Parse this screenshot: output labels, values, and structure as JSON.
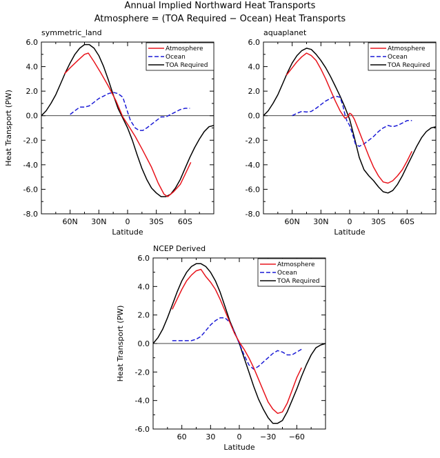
{
  "header": {
    "title_line1": "Annual Implied Northward Heat Transports",
    "title_line2": "Atmosphere = (TOA Required − Ocean) Heat Transports"
  },
  "chart_data": [
    {
      "type": "line",
      "subtitle": "symmetric_land",
      "xlabel": "Latitude",
      "ylabel": "Heat Transport (PW)",
      "xlim": [
        90,
        -90
      ],
      "ylim": [
        -8,
        6
      ],
      "xticks": [
        60,
        30,
        0,
        -30,
        -60
      ],
      "xtick_labels": [
        "60N",
        "30N",
        "0",
        "30S",
        "60S"
      ],
      "yticks": [
        -8,
        -6,
        -4,
        -2,
        0,
        2,
        4,
        6
      ],
      "ytick_labels": [
        "-8.0",
        "-6.0",
        "-4.0",
        "-2.0",
        "0.0",
        "2.0",
        "4.0",
        "6.0"
      ],
      "zero_line": true,
      "legend": {
        "placement": "top-right",
        "entries": [
          "Atmosphere",
          "Ocean",
          "TOA Required"
        ]
      },
      "series": [
        {
          "name": "Atmosphere",
          "color": "#e8131b",
          "dash": "solid",
          "x": [
            66,
            60,
            52,
            45,
            41,
            35,
            28,
            20,
            12,
            5,
            0,
            -8,
            -15,
            -25,
            -32,
            -38,
            -42,
            -48,
            -55,
            -60,
            -66
          ],
          "y": [
            3.4,
            3.9,
            4.5,
            5.0,
            5.1,
            4.4,
            3.5,
            2.4,
            1.2,
            -0.1,
            -0.7,
            -1.7,
            -2.7,
            -4.2,
            -5.5,
            -6.4,
            -6.6,
            -6.2,
            -5.6,
            -4.8,
            -3.8
          ]
        },
        {
          "name": "Ocean",
          "color": "#1a1ad6",
          "dash": "dashed",
          "x": [
            60,
            55,
            50,
            45,
            40,
            35,
            30,
            25,
            20,
            15,
            10,
            5,
            2,
            0,
            -3,
            -8,
            -12,
            -16,
            -20,
            -25,
            -30,
            -35,
            -40,
            -45,
            -50,
            -55,
            -60,
            -65
          ],
          "y": [
            0.1,
            0.4,
            0.7,
            0.7,
            0.8,
            1.1,
            1.4,
            1.6,
            1.8,
            1.9,
            1.8,
            1.5,
            0.8,
            0.3,
            -0.4,
            -1.0,
            -1.2,
            -1.2,
            -1.0,
            -0.7,
            -0.4,
            -0.1,
            -0.1,
            0.1,
            0.3,
            0.5,
            0.6,
            0.6
          ]
        },
        {
          "name": "TOA Required",
          "color": "#000000",
          "dash": "solid",
          "x": [
            90,
            85,
            80,
            75,
            70,
            65,
            60,
            55,
            50,
            45,
            40,
            35,
            30,
            25,
            20,
            15,
            10,
            5,
            0,
            -5,
            -10,
            -15,
            -20,
            -25,
            -30,
            -35,
            -40,
            -45,
            -50,
            -55,
            -60,
            -65,
            -70,
            -75,
            -80,
            -85,
            -90
          ],
          "y": [
            0.0,
            0.4,
            1.0,
            1.7,
            2.6,
            3.5,
            4.3,
            5.0,
            5.5,
            5.8,
            5.8,
            5.5,
            4.9,
            4.0,
            2.9,
            1.7,
            0.6,
            -0.2,
            -1.0,
            -2.0,
            -3.2,
            -4.3,
            -5.2,
            -5.9,
            -6.3,
            -6.6,
            -6.6,
            -6.4,
            -5.9,
            -5.2,
            -4.3,
            -3.4,
            -2.6,
            -1.9,
            -1.3,
            -0.9,
            -0.8
          ]
        }
      ]
    },
    {
      "type": "line",
      "subtitle": "aquaplanet",
      "xlabel": "Latitude",
      "ylabel": "",
      "xlim": [
        90,
        -90
      ],
      "ylim": [
        -8,
        6
      ],
      "xticks": [
        60,
        30,
        0,
        -30,
        -60
      ],
      "xtick_labels": [
        "60N",
        "30N",
        "0",
        "30S",
        "60S"
      ],
      "yticks": [
        -8,
        -6,
        -4,
        -2,
        0,
        2,
        4,
        6
      ],
      "ytick_labels": [
        "-8.0",
        "-6.0",
        "-4.0",
        "-2.0",
        "0.0",
        "2.0",
        "4.0",
        "6.0"
      ],
      "zero_line": true,
      "legend": {
        "placement": "top-right",
        "entries": [
          "Atmosphere",
          "Ocean",
          "TOA Required"
        ]
      },
      "series": [
        {
          "name": "Atmosphere",
          "color": "#e8131b",
          "dash": "solid",
          "x": [
            66,
            60,
            55,
            50,
            45,
            40,
            35,
            30,
            25,
            20,
            15,
            10,
            5,
            2,
            0,
            -2,
            -5,
            -10,
            -15,
            -20,
            -25,
            -30,
            -35,
            -40,
            -45,
            -50,
            -55,
            -60,
            -65
          ],
          "y": [
            3.3,
            3.9,
            4.4,
            4.8,
            5.1,
            4.9,
            4.5,
            3.8,
            3.0,
            2.1,
            1.2,
            0.4,
            -0.2,
            -0.1,
            0.2,
            0.1,
            -0.3,
            -1.3,
            -2.3,
            -3.3,
            -4.2,
            -4.9,
            -5.4,
            -5.5,
            -5.3,
            -4.9,
            -4.4,
            -3.7,
            -2.9
          ]
        },
        {
          "name": "Ocean",
          "color": "#1a1ad6",
          "dash": "dashed",
          "x": [
            60,
            55,
            50,
            45,
            40,
            35,
            30,
            25,
            20,
            15,
            10,
            7,
            5,
            3,
            0,
            -3,
            -6,
            -10,
            -15,
            -20,
            -25,
            -30,
            -35,
            -40,
            -45,
            -50,
            -55,
            -60,
            -65
          ],
          "y": [
            0.0,
            0.2,
            0.35,
            0.3,
            0.35,
            0.6,
            0.9,
            1.2,
            1.4,
            1.6,
            1.5,
            0.8,
            0.1,
            -0.4,
            -0.8,
            -1.5,
            -2.3,
            -2.5,
            -2.3,
            -2.0,
            -1.7,
            -1.3,
            -1.0,
            -0.8,
            -0.9,
            -0.8,
            -0.6,
            -0.4,
            -0.4
          ]
        },
        {
          "name": "TOA Required",
          "color": "#000000",
          "dash": "solid",
          "x": [
            90,
            85,
            80,
            75,
            70,
            65,
            60,
            55,
            50,
            45,
            40,
            35,
            30,
            25,
            20,
            15,
            10,
            5,
            0,
            -5,
            -10,
            -15,
            -20,
            -25,
            -30,
            -35,
            -40,
            -45,
            -50,
            -55,
            -60,
            -65,
            -70,
            -75,
            -80,
            -85,
            -90
          ],
          "y": [
            0.0,
            0.4,
            1.0,
            1.7,
            2.6,
            3.5,
            4.3,
            4.9,
            5.3,
            5.5,
            5.4,
            5.0,
            4.5,
            3.9,
            3.2,
            2.4,
            1.6,
            0.7,
            -0.3,
            -1.8,
            -3.4,
            -4.4,
            -4.9,
            -5.3,
            -5.8,
            -6.2,
            -6.3,
            -6.1,
            -5.6,
            -4.9,
            -4.1,
            -3.3,
            -2.5,
            -1.8,
            -1.3,
            -1.0,
            -0.9
          ]
        }
      ]
    },
    {
      "type": "line",
      "subtitle": "NCEP Derived",
      "xlabel": "Latitude",
      "ylabel": "Heat Transport (PW)",
      "xlim": [
        90,
        -90
      ],
      "ylim": [
        -6,
        6
      ],
      "xticks": [
        60,
        30,
        0,
        -30,
        -60
      ],
      "xtick_labels": [
        "60",
        "30",
        "0",
        "−30",
        "−60"
      ],
      "yticks": [
        -6,
        -4,
        -2,
        0,
        2,
        4,
        6
      ],
      "ytick_labels": [
        "-6.0",
        "-4.0",
        "-2.0",
        "0.0",
        "2.0",
        "4.0",
        "6.0"
      ],
      "zero_line": true,
      "legend": {
        "placement": "top-right",
        "entries": [
          "Atmosphere",
          "Ocean",
          "TOA Required"
        ]
      },
      "series": [
        {
          "name": "Atmosphere",
          "color": "#e8131b",
          "dash": "solid",
          "x": [
            70,
            65,
            60,
            55,
            50,
            45,
            40,
            35,
            30,
            25,
            20,
            15,
            10,
            5,
            0,
            -5,
            -10,
            -15,
            -20,
            -25,
            -30,
            -35,
            -40,
            -45,
            -50,
            -55,
            -60,
            -65
          ],
          "y": [
            2.4,
            3.1,
            3.8,
            4.4,
            4.8,
            5.1,
            5.2,
            4.7,
            4.3,
            3.8,
            3.1,
            2.3,
            1.5,
            0.7,
            0.1,
            -0.4,
            -1.0,
            -1.7,
            -2.5,
            -3.3,
            -4.1,
            -4.6,
            -4.9,
            -4.8,
            -4.2,
            -3.3,
            -2.4,
            -1.7
          ]
        },
        {
          "name": "Ocean",
          "color": "#1a1ad6",
          "dash": "dashed",
          "x": [
            70,
            65,
            60,
            55,
            50,
            45,
            40,
            35,
            30,
            25,
            20,
            15,
            10,
            5,
            0,
            -5,
            -10,
            -15,
            -20,
            -25,
            -30,
            -35,
            -40,
            -45,
            -50,
            -55,
            -60,
            -65
          ],
          "y": [
            0.2,
            0.2,
            0.2,
            0.2,
            0.2,
            0.3,
            0.5,
            0.9,
            1.3,
            1.6,
            1.8,
            1.8,
            1.5,
            0.8,
            0.0,
            -0.8,
            -1.5,
            -1.8,
            -1.6,
            -1.3,
            -1.0,
            -0.7,
            -0.5,
            -0.6,
            -0.8,
            -0.8,
            -0.6,
            -0.4
          ]
        },
        {
          "name": "TOA Required",
          "color": "#000000",
          "dash": "solid",
          "x": [
            90,
            85,
            80,
            75,
            70,
            65,
            60,
            55,
            50,
            45,
            40,
            35,
            30,
            25,
            20,
            15,
            10,
            5,
            0,
            -5,
            -10,
            -15,
            -20,
            -25,
            -30,
            -35,
            -40,
            -45,
            -50,
            -55,
            -60,
            -65,
            -70,
            -75,
            -80,
            -85,
            -90
          ],
          "y": [
            0.0,
            0.4,
            1.0,
            1.8,
            2.7,
            3.6,
            4.4,
            5.0,
            5.4,
            5.6,
            5.6,
            5.4,
            5.0,
            4.4,
            3.6,
            2.6,
            1.6,
            0.8,
            0.0,
            -1.0,
            -2.0,
            -3.0,
            -3.9,
            -4.6,
            -5.2,
            -5.6,
            -5.6,
            -5.4,
            -4.8,
            -4.0,
            -3.2,
            -2.3,
            -1.5,
            -0.8,
            -0.3,
            -0.1,
            0.0
          ]
        }
      ]
    }
  ]
}
